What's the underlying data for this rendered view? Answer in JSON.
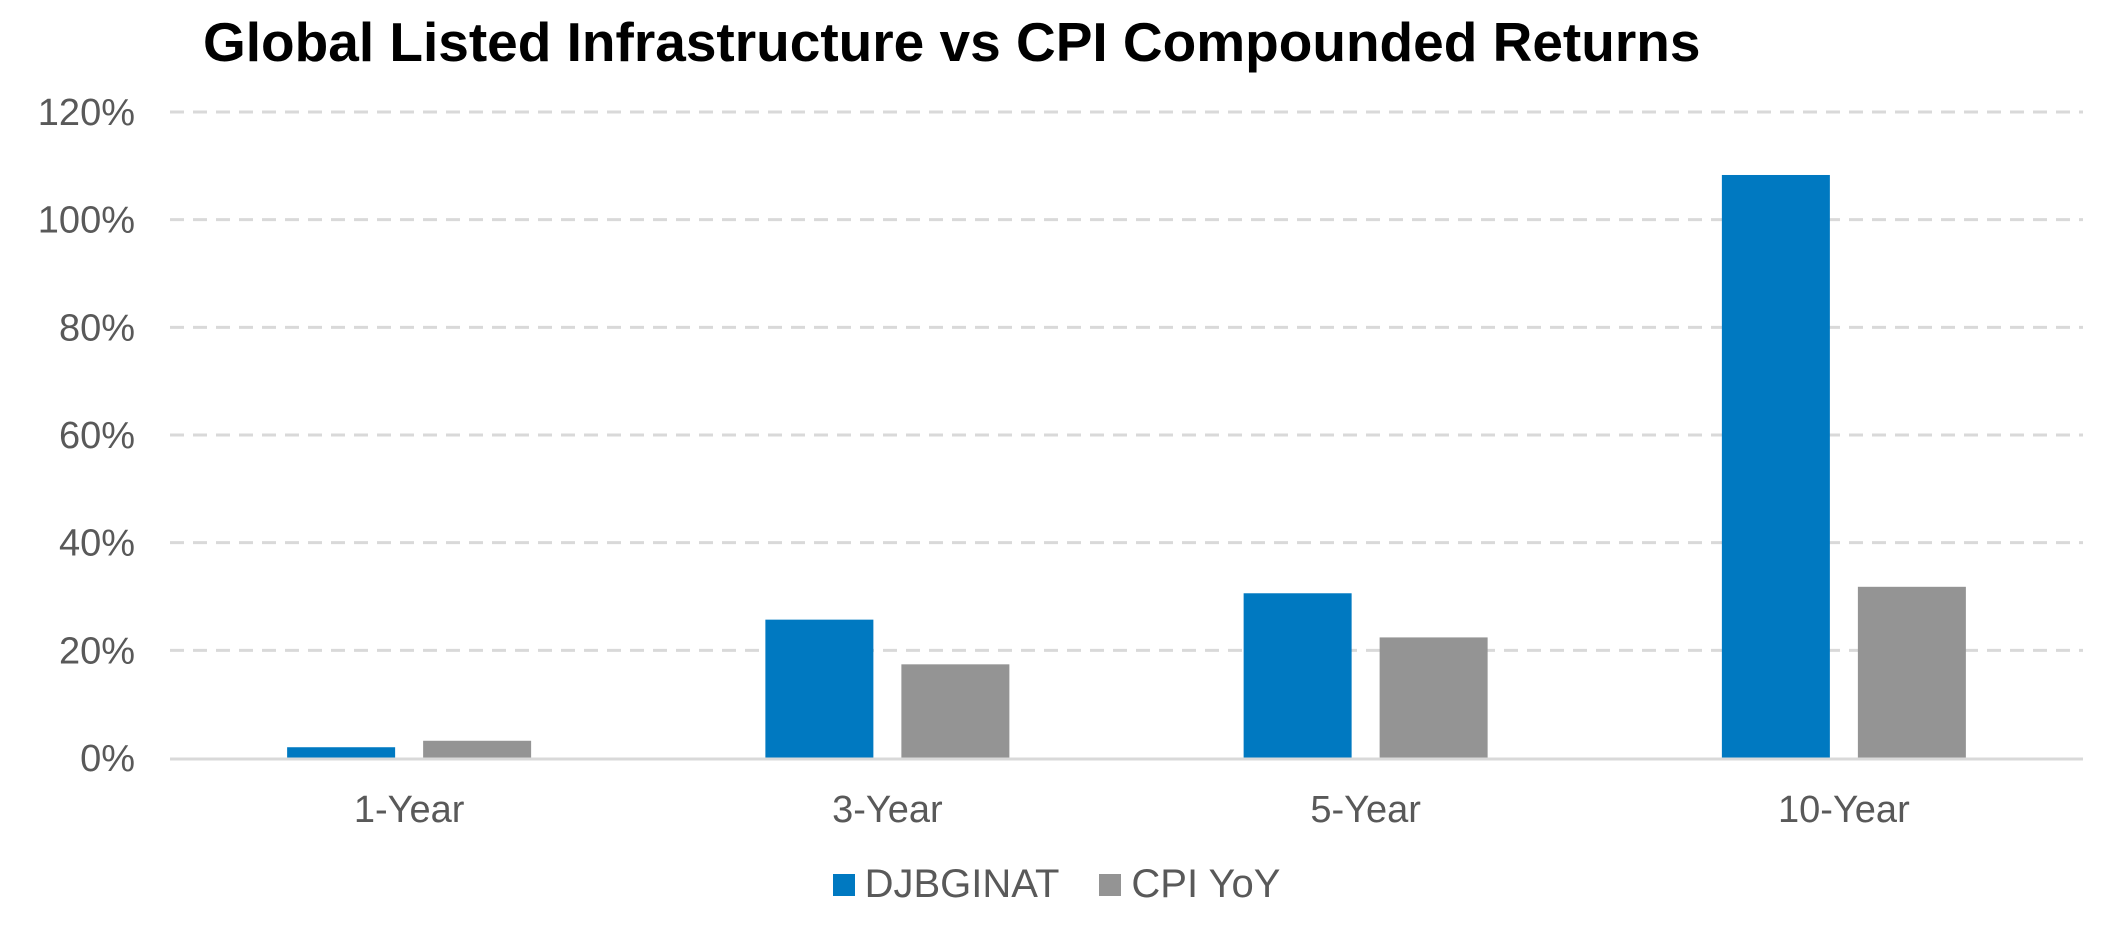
{
  "chart_data": {
    "type": "bar",
    "title": "Global Listed Infrastructure vs CPI Compounded Returns",
    "categories": [
      "1-Year",
      "3-Year",
      "5-Year",
      "10-Year"
    ],
    "series": [
      {
        "name": "DJBGINAT",
        "color": "#0079c1",
        "values": [
          2,
          25.7,
          30.6,
          108.3
        ]
      },
      {
        "name": "CPI YoY",
        "color": "#949494",
        "values": [
          3.2,
          17.4,
          22.4,
          31.8
        ]
      }
    ],
    "y_ticks": [
      "0%",
      "20%",
      "40%",
      "60%",
      "80%",
      "100%",
      "120%"
    ],
    "ylim": [
      0,
      120
    ],
    "grid": true,
    "legend_position": "bottom"
  }
}
